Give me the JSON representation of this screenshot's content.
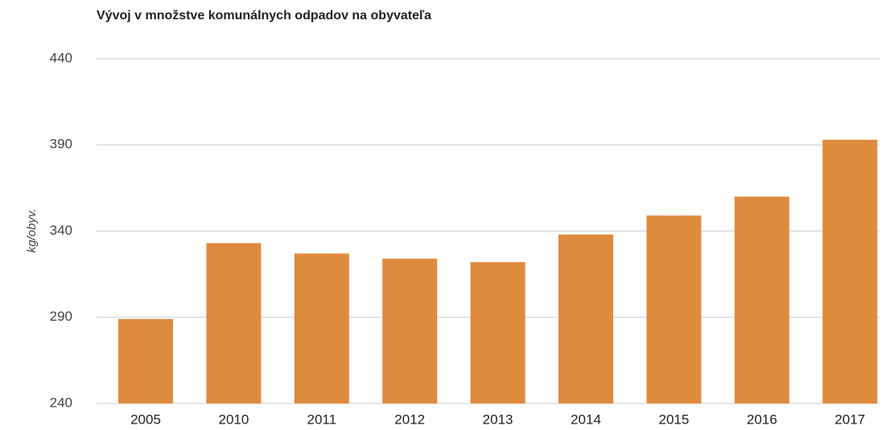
{
  "chart_data": {
    "type": "bar",
    "title": "Vývoj v množstve komunálnych odpadov na obyvateľa",
    "y_label": "kg/obyv.",
    "categories": [
      "2005",
      "2010",
      "2011",
      "2012",
      "2013",
      "2014",
      "2015",
      "2016",
      "2017"
    ],
    "values": [
      289,
      333,
      327,
      324,
      322,
      338,
      349,
      360,
      393
    ],
    "color": "#df8b3e",
    "ylim": [
      240,
      440
    ],
    "yticks": [
      240,
      290,
      340,
      390,
      440
    ],
    "grid": true
  }
}
